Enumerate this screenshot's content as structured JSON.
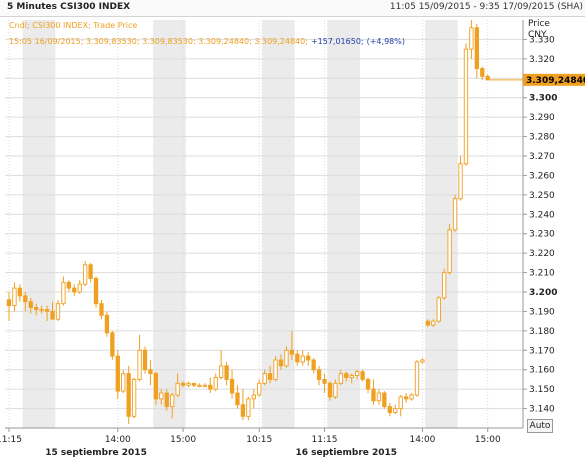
{
  "header": {
    "title": "5 Minutes CSI300 INDEX",
    "range": "11:05 15/09/2015 - 9:35 17/09/2015 (SHA)"
  },
  "legend": {
    "series": "Cndl; CSI300 INDEX; Trade Price",
    "ohlc": "15:05 16/09/2015; 3.309,83530; 3.309,83530; 3.309,24840; 3.309,24840;",
    "change": "+157,01650;",
    "change_pct": "(+4,98%)"
  },
  "axis": {
    "y_title": "Price",
    "y_unit": "CNY",
    "last_price": "3.309,24840",
    "auto_label": "Auto"
  },
  "colors": {
    "candle": "#f0a020",
    "change": "#1f3fa8",
    "grid": "#dcdcdc",
    "band": "#ebebeb",
    "marker": "#f0a020"
  },
  "chart_data": {
    "type": "candlestick",
    "title": "5 Minutes CSI300 INDEX",
    "ylabel": "Price CNY",
    "ylim": [
      3.13,
      3.34
    ],
    "y_ticks": [
      3.14,
      3.15,
      3.16,
      3.17,
      3.18,
      3.19,
      3.2,
      3.21,
      3.22,
      3.23,
      3.24,
      3.25,
      3.26,
      3.27,
      3.28,
      3.29,
      3.3,
      3.31,
      3.32,
      3.33
    ],
    "y_tick_labels": [
      "3.140",
      "3.150",
      "3.160",
      "3.170",
      "3.180",
      "3.190",
      "3.200",
      "3.210",
      "3.220",
      "3.230",
      "3.240",
      "3.250",
      "3.260",
      "3.270",
      "3.280",
      "3.290",
      "3.300",
      "3.310",
      "3.320",
      "3.330"
    ],
    "y_bold_ticks": [
      3.2,
      3.3
    ],
    "x_ticks": [
      {
        "i": 0,
        "label": "11:15"
      },
      {
        "i": 20,
        "label": "14:00"
      },
      {
        "i": 32,
        "label": "15:00"
      },
      {
        "i": 46,
        "label": "10:15"
      },
      {
        "i": 58,
        "label": "11:15"
      },
      {
        "i": 76,
        "label": "14:00"
      },
      {
        "i": 88,
        "label": "15:00"
      }
    ],
    "date_labels": [
      {
        "i": 16,
        "label": "15 septiembre 2015"
      },
      {
        "i": 62,
        "label": "16 septiembre 2015"
      }
    ],
    "shaded_bands": [
      [
        2,
        8
      ],
      [
        26,
        32
      ],
      [
        46,
        52
      ],
      [
        58,
        64
      ],
      [
        76,
        82
      ]
    ],
    "candles": [
      {
        "o": 3.196,
        "h": 3.2,
        "l": 3.185,
        "c": 3.193
      },
      {
        "o": 3.193,
        "h": 3.205,
        "l": 3.19,
        "c": 3.202
      },
      {
        "o": 3.202,
        "h": 3.204,
        "l": 3.195,
        "c": 3.198
      },
      {
        "o": 3.198,
        "h": 3.2,
        "l": 3.19,
        "c": 3.195
      },
      {
        "o": 3.195,
        "h": 3.197,
        "l": 3.189,
        "c": 3.192
      },
      {
        "o": 3.192,
        "h": 3.194,
        "l": 3.188,
        "c": 3.191
      },
      {
        "o": 3.191,
        "h": 3.193,
        "l": 3.189,
        "c": 3.191
      },
      {
        "o": 3.191,
        "h": 3.193,
        "l": 3.185,
        "c": 3.19
      },
      {
        "o": 3.19,
        "h": 3.195,
        "l": 3.188,
        "c": 3.186
      },
      {
        "o": 3.186,
        "h": 3.196,
        "l": 3.185,
        "c": 3.194
      },
      {
        "o": 3.194,
        "h": 3.208,
        "l": 3.193,
        "c": 3.205
      },
      {
        "o": 3.205,
        "h": 3.206,
        "l": 3.2,
        "c": 3.202
      },
      {
        "o": 3.202,
        "h": 3.204,
        "l": 3.198,
        "c": 3.2
      },
      {
        "o": 3.2,
        "h": 3.206,
        "l": 3.199,
        "c": 3.204
      },
      {
        "o": 3.204,
        "h": 3.216,
        "l": 3.203,
        "c": 3.214
      },
      {
        "o": 3.214,
        "h": 3.215,
        "l": 3.205,
        "c": 3.207
      },
      {
        "o": 3.207,
        "h": 3.208,
        "l": 3.192,
        "c": 3.194
      },
      {
        "o": 3.194,
        "h": 3.196,
        "l": 3.186,
        "c": 3.188
      },
      {
        "o": 3.188,
        "h": 3.19,
        "l": 3.177,
        "c": 3.179
      },
      {
        "o": 3.179,
        "h": 3.18,
        "l": 3.165,
        "c": 3.167
      },
      {
        "o": 3.167,
        "h": 3.17,
        "l": 3.145,
        "c": 3.149
      },
      {
        "o": 3.149,
        "h": 3.16,
        "l": 3.148,
        "c": 3.158
      },
      {
        "o": 3.158,
        "h": 3.162,
        "l": 3.132,
        "c": 3.136
      },
      {
        "o": 3.136,
        "h": 3.156,
        "l": 3.135,
        "c": 3.155
      },
      {
        "o": 3.155,
        "h": 3.178,
        "l": 3.154,
        "c": 3.17
      },
      {
        "o": 3.17,
        "h": 3.172,
        "l": 3.158,
        "c": 3.16
      },
      {
        "o": 3.16,
        "h": 3.165,
        "l": 3.152,
        "c": 3.158
      },
      {
        "o": 3.158,
        "h": 3.159,
        "l": 3.142,
        "c": 3.145
      },
      {
        "o": 3.145,
        "h": 3.15,
        "l": 3.142,
        "c": 3.148
      },
      {
        "o": 3.148,
        "h": 3.15,
        "l": 3.139,
        "c": 3.141
      },
      {
        "o": 3.141,
        "h": 3.148,
        "l": 3.135,
        "c": 3.147
      },
      {
        "o": 3.147,
        "h": 3.158,
        "l": 3.146,
        "c": 3.153
      },
      {
        "o": 3.153,
        "h": 3.154,
        "l": 3.151,
        "c": 3.152
      },
      {
        "o": 3.152,
        "h": 3.154,
        "l": 3.151,
        "c": 3.153
      },
      {
        "o": 3.153,
        "h": 3.153,
        "l": 3.151,
        "c": 3.152
      },
      {
        "o": 3.152,
        "h": 3.153,
        "l": 3.151,
        "c": 3.152
      },
      {
        "o": 3.152,
        "h": 3.153,
        "l": 3.151,
        "c": 3.152
      },
      {
        "o": 3.152,
        "h": 3.156,
        "l": 3.148,
        "c": 3.15
      },
      {
        "o": 3.15,
        "h": 3.158,
        "l": 3.149,
        "c": 3.156
      },
      {
        "o": 3.156,
        "h": 3.17,
        "l": 3.155,
        "c": 3.162
      },
      {
        "o": 3.162,
        "h": 3.164,
        "l": 3.152,
        "c": 3.155
      },
      {
        "o": 3.155,
        "h": 3.16,
        "l": 3.145,
        "c": 3.148
      },
      {
        "o": 3.148,
        "h": 3.152,
        "l": 3.14,
        "c": 3.142
      },
      {
        "o": 3.142,
        "h": 3.15,
        "l": 3.134,
        "c": 3.136
      },
      {
        "o": 3.136,
        "h": 3.146,
        "l": 3.134,
        "c": 3.145
      },
      {
        "o": 3.145,
        "h": 3.15,
        "l": 3.14,
        "c": 3.147
      },
      {
        "o": 3.147,
        "h": 3.155,
        "l": 3.146,
        "c": 3.153
      },
      {
        "o": 3.153,
        "h": 3.16,
        "l": 3.152,
        "c": 3.158
      },
      {
        "o": 3.158,
        "h": 3.162,
        "l": 3.153,
        "c": 3.155
      },
      {
        "o": 3.155,
        "h": 3.167,
        "l": 3.154,
        "c": 3.165
      },
      {
        "o": 3.165,
        "h": 3.168,
        "l": 3.16,
        "c": 3.162
      },
      {
        "o": 3.162,
        "h": 3.172,
        "l": 3.161,
        "c": 3.17
      },
      {
        "o": 3.17,
        "h": 3.18,
        "l": 3.165,
        "c": 3.168
      },
      {
        "o": 3.168,
        "h": 3.17,
        "l": 3.162,
        "c": 3.164
      },
      {
        "o": 3.164,
        "h": 3.17,
        "l": 3.162,
        "c": 3.167
      },
      {
        "o": 3.167,
        "h": 3.169,
        "l": 3.162,
        "c": 3.165
      },
      {
        "o": 3.165,
        "h": 3.166,
        "l": 3.158,
        "c": 3.16
      },
      {
        "o": 3.16,
        "h": 3.162,
        "l": 3.152,
        "c": 3.155
      },
      {
        "o": 3.155,
        "h": 3.158,
        "l": 3.148,
        "c": 3.153
      },
      {
        "o": 3.153,
        "h": 3.154,
        "l": 3.144,
        "c": 3.146
      },
      {
        "o": 3.146,
        "h": 3.155,
        "l": 3.145,
        "c": 3.153
      },
      {
        "o": 3.153,
        "h": 3.16,
        "l": 3.152,
        "c": 3.158
      },
      {
        "o": 3.158,
        "h": 3.159,
        "l": 3.154,
        "c": 3.156
      },
      {
        "o": 3.156,
        "h": 3.158,
        "l": 3.153,
        "c": 3.157
      },
      {
        "o": 3.157,
        "h": 3.16,
        "l": 3.155,
        "c": 3.159
      },
      {
        "o": 3.159,
        "h": 3.16,
        "l": 3.154,
        "c": 3.155
      },
      {
        "o": 3.155,
        "h": 3.156,
        "l": 3.148,
        "c": 3.15
      },
      {
        "o": 3.15,
        "h": 3.155,
        "l": 3.142,
        "c": 3.144
      },
      {
        "o": 3.144,
        "h": 3.15,
        "l": 3.142,
        "c": 3.148
      },
      {
        "o": 3.148,
        "h": 3.149,
        "l": 3.14,
        "c": 3.141
      },
      {
        "o": 3.141,
        "h": 3.143,
        "l": 3.136,
        "c": 3.138
      },
      {
        "o": 3.138,
        "h": 3.142,
        "l": 3.137,
        "c": 3.14
      },
      {
        "o": 3.14,
        "h": 3.147,
        "l": 3.136,
        "c": 3.146
      },
      {
        "o": 3.146,
        "h": 3.148,
        "l": 3.143,
        "c": 3.145
      },
      {
        "o": 3.145,
        "h": 3.148,
        "l": 3.144,
        "c": 3.147
      },
      {
        "o": 3.147,
        "h": 3.165,
        "l": 3.146,
        "c": 3.164
      },
      {
        "o": 3.164,
        "h": 3.166,
        "l": 3.163,
        "c": 3.165
      },
      {
        "o": 3.185,
        "h": 3.186,
        "l": 3.182,
        "c": 3.183
      },
      {
        "o": 3.183,
        "h": 3.186,
        "l": 3.182,
        "c": 3.185
      },
      {
        "o": 3.185,
        "h": 3.198,
        "l": 3.184,
        "c": 3.197
      },
      {
        "o": 3.197,
        "h": 3.212,
        "l": 3.196,
        "c": 3.21
      },
      {
        "o": 3.21,
        "h": 3.235,
        "l": 3.209,
        "c": 3.232
      },
      {
        "o": 3.232,
        "h": 3.25,
        "l": 3.231,
        "c": 3.248
      },
      {
        "o": 3.248,
        "h": 3.27,
        "l": 3.247,
        "c": 3.266
      },
      {
        "o": 3.266,
        "h": 3.328,
        "l": 3.265,
        "c": 3.325
      },
      {
        "o": 3.325,
        "h": 3.34,
        "l": 3.32,
        "c": 3.336
      },
      {
        "o": 3.336,
        "h": 3.338,
        "l": 3.31,
        "c": 3.315
      },
      {
        "o": 3.315,
        "h": 3.316,
        "l": 3.309,
        "c": 3.311
      },
      {
        "o": 3.311,
        "h": 3.312,
        "l": 3.309,
        "c": 3.3092
      }
    ]
  }
}
